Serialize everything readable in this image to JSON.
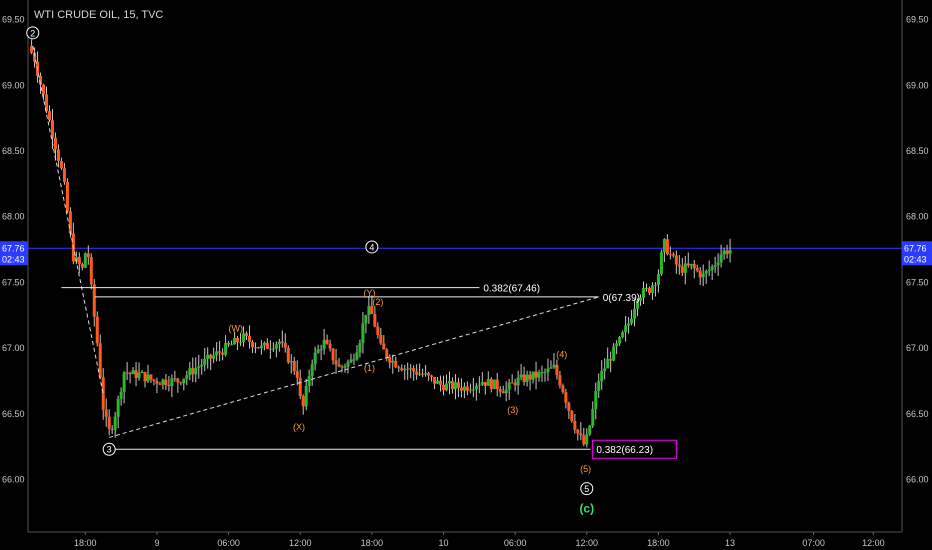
{
  "header": {
    "title": "WTI CRUDE OIL, 15, TVC"
  },
  "chart_data": {
    "type": "candlestick",
    "ylim": [
      65.6,
      69.65
    ],
    "y_ticks": [
      "69.50",
      "69.00",
      "68.50",
      "68.00",
      "67.50",
      "67.00",
      "66.50",
      "66.00"
    ],
    "y_tick_values": [
      69.5,
      69.0,
      68.5,
      68.0,
      67.5,
      67.0,
      66.5,
      66.0
    ],
    "x_ticks": [
      "18:00",
      "9",
      "06:00",
      "12:00",
      "18:00",
      "10",
      "06:00",
      "12:00",
      "18:00",
      "13",
      "07:00",
      "12:00"
    ],
    "x_tick_hours": [
      18,
      24,
      30,
      36,
      42,
      48,
      54,
      60,
      66,
      72,
      79,
      84
    ],
    "x_range_hours": [
      13.2,
      86.4
    ],
    "last_price": {
      "value": "67.76",
      "countdown": "02:43",
      "level": 67.76,
      "color": "#2c3cff"
    },
    "colors": {
      "up": "#2eb82e",
      "down": "#ff5a1f",
      "wick": "#c8c8c8",
      "orange_label": "#ff9a3c",
      "green_label": "#3cdc6e",
      "fib_box": "#ff00ff"
    },
    "anchor_path": [
      [
        13.5,
        69.3
      ],
      [
        14.0,
        69.2
      ],
      [
        14.8,
        68.9
      ],
      [
        15.6,
        68.6
      ],
      [
        16.4,
        68.3
      ],
      [
        17.2,
        67.7
      ],
      [
        18.0,
        67.6
      ],
      [
        18.4,
        67.8
      ],
      [
        18.8,
        67.4
      ],
      [
        19.3,
        67.0
      ],
      [
        19.8,
        66.5
      ],
      [
        20.3,
        66.35
      ],
      [
        20.9,
        66.55
      ],
      [
        21.5,
        66.82
      ],
      [
        22.2,
        66.8
      ],
      [
        22.8,
        66.8
      ],
      [
        24.0,
        66.75
      ],
      [
        26.0,
        66.75
      ],
      [
        28.0,
        66.88
      ],
      [
        30.0,
        67.0
      ],
      [
        31.5,
        67.08
      ],
      [
        33.0,
        67.0
      ],
      [
        34.5,
        67.05
      ],
      [
        36.0,
        66.8
      ],
      [
        36.4,
        66.5
      ],
      [
        37.2,
        66.9
      ],
      [
        38.2,
        67.05
      ],
      [
        39.5,
        66.85
      ],
      [
        40.5,
        66.9
      ],
      [
        41.2,
        67.05
      ],
      [
        41.8,
        67.3
      ],
      [
        42.3,
        67.25
      ],
      [
        43.0,
        67.0
      ],
      [
        44.0,
        66.9
      ],
      [
        45.0,
        66.85
      ],
      [
        46.5,
        66.8
      ],
      [
        48.0,
        66.72
      ],
      [
        50.0,
        66.7
      ],
      [
        51.5,
        66.75
      ],
      [
        52.5,
        66.72
      ],
      [
        53.5,
        66.68
      ],
      [
        54.3,
        66.75
      ],
      [
        55.5,
        66.78
      ],
      [
        56.5,
        66.8
      ],
      [
        57.5,
        66.85
      ],
      [
        58.2,
        66.7
      ],
      [
        58.8,
        66.52
      ],
      [
        59.5,
        66.35
      ],
      [
        60.1,
        66.25
      ],
      [
        60.6,
        66.45
      ],
      [
        61.2,
        66.75
      ],
      [
        62.0,
        66.9
      ],
      [
        63.0,
        67.05
      ],
      [
        63.8,
        67.2
      ],
      [
        64.5,
        67.4
      ],
      [
        65.5,
        67.45
      ],
      [
        66.2,
        67.55
      ],
      [
        66.7,
        67.8
      ],
      [
        67.3,
        67.7
      ],
      [
        68.0,
        67.6
      ],
      [
        69.0,
        67.62
      ],
      [
        70.0,
        67.55
      ],
      [
        70.8,
        67.62
      ],
      [
        71.5,
        67.72
      ],
      [
        72.1,
        67.75
      ]
    ],
    "fib_lines": [
      {
        "label": "0.382(67.46)",
        "y": 67.46,
        "x0": 16.0,
        "x1": 51.0
      },
      {
        "label": "0(67.39)",
        "y": 67.39,
        "x0": 18.8,
        "x1": 61.0
      },
      {
        "label": "0.382(66.23)",
        "y": 66.23,
        "x0": 20.0,
        "x1": 60.3,
        "boxed": true
      }
    ],
    "trend_lines": [
      {
        "from": [
          20.0,
          66.32
        ],
        "to": [
          61.0,
          67.39
        ]
      },
      {
        "from": [
          13.6,
          69.3
        ],
        "to": [
          19.5,
          66.65
        ]
      }
    ],
    "wave_labels": [
      {
        "text": "2",
        "x": 13.6,
        "y": 69.4,
        "style": "circle"
      },
      {
        "text": "3",
        "x": 20.0,
        "y": 66.23,
        "style": "circle"
      },
      {
        "text": "4",
        "x": 42.0,
        "y": 67.77,
        "style": "circle"
      },
      {
        "text": "5",
        "x": 60.0,
        "y": 65.93,
        "style": "circle"
      },
      {
        "text": "(c)",
        "x": 60.0,
        "y": 65.78,
        "style": "green"
      },
      {
        "text": "(W)",
        "x": 30.6,
        "y": 67.15,
        "style": "orange"
      },
      {
        "text": "(X)",
        "x": 35.9,
        "y": 66.4,
        "style": "orange"
      },
      {
        "text": "(Y)",
        "x": 41.8,
        "y": 67.42,
        "style": "orange"
      },
      {
        "text": "(2)",
        "x": 42.5,
        "y": 67.35,
        "style": "orange"
      },
      {
        "text": "(1)",
        "x": 41.8,
        "y": 66.85,
        "style": "orange"
      },
      {
        "text": "(3)",
        "x": 53.8,
        "y": 66.53,
        "style": "orange"
      },
      {
        "text": "(4)",
        "x": 57.9,
        "y": 66.95,
        "style": "orange"
      },
      {
        "text": "(5)",
        "x": 59.9,
        "y": 66.08,
        "style": "orange"
      }
    ]
  }
}
